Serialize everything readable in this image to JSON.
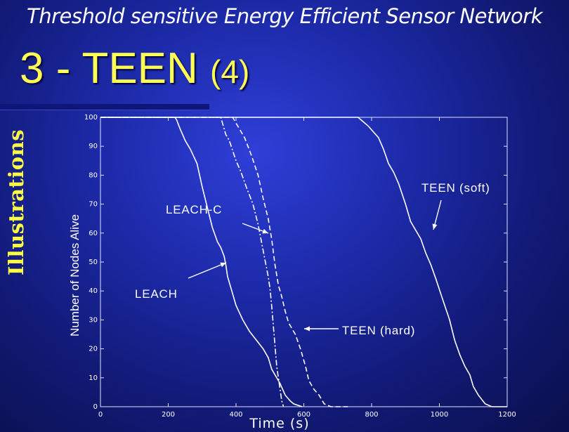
{
  "slide": {
    "top_title": "Threshold sensitive Energy Efficient Sensor Network",
    "heading_main": "3 - TEEN",
    "heading_sub": "(4)",
    "side_label": "Illustrations"
  },
  "colors": {
    "heading": "#ffff55",
    "side_label": "#ffff44",
    "lines": "#ffffff"
  },
  "chart_data": {
    "type": "line",
    "title": "",
    "xlabel": "Time (s)",
    "ylabel": "Number of Nodes Alive",
    "xlim": [
      0,
      1200
    ],
    "ylim": [
      0,
      100
    ],
    "xticks": [
      0,
      200,
      400,
      600,
      800,
      1000,
      1200
    ],
    "yticks": [
      0,
      10,
      20,
      30,
      40,
      50,
      60,
      70,
      80,
      90,
      100
    ],
    "grid": false,
    "series": [
      {
        "name": "LEACH",
        "style": "solid",
        "points": [
          [
            0,
            100
          ],
          [
            220,
            100
          ],
          [
            225,
            99
          ],
          [
            235,
            96
          ],
          [
            250,
            92
          ],
          [
            265,
            89
          ],
          [
            285,
            84
          ],
          [
            300,
            76
          ],
          [
            315,
            69
          ],
          [
            330,
            62
          ],
          [
            345,
            57
          ],
          [
            355,
            55
          ],
          [
            365,
            52
          ],
          [
            370,
            49
          ],
          [
            375,
            45
          ],
          [
            385,
            41
          ],
          [
            400,
            35
          ],
          [
            420,
            30
          ],
          [
            440,
            26
          ],
          [
            460,
            23
          ],
          [
            480,
            20
          ],
          [
            495,
            17
          ],
          [
            500,
            15
          ],
          [
            505,
            13
          ],
          [
            515,
            11
          ],
          [
            530,
            8
          ],
          [
            545,
            4
          ],
          [
            560,
            2
          ],
          [
            570,
            1
          ],
          [
            595,
            0
          ]
        ]
      },
      {
        "name": "LEACH-C",
        "style": "dashdot",
        "points": [
          [
            0,
            100
          ],
          [
            355,
            100
          ],
          [
            360,
            98
          ],
          [
            370,
            94
          ],
          [
            380,
            92
          ],
          [
            400,
            85
          ],
          [
            415,
            81
          ],
          [
            430,
            76
          ],
          [
            450,
            70
          ],
          [
            465,
            63
          ],
          [
            475,
            57
          ],
          [
            485,
            51
          ],
          [
            495,
            45
          ],
          [
            500,
            41
          ],
          [
            505,
            35
          ],
          [
            510,
            28
          ],
          [
            515,
            21
          ],
          [
            520,
            14
          ],
          [
            525,
            10
          ],
          [
            530,
            6
          ],
          [
            535,
            2
          ],
          [
            540,
            0
          ]
        ]
      },
      {
        "name": "TEEN (hard)",
        "style": "dashed",
        "points": [
          [
            0,
            100
          ],
          [
            390,
            100
          ],
          [
            395,
            99
          ],
          [
            410,
            96
          ],
          [
            425,
            93
          ],
          [
            445,
            87
          ],
          [
            465,
            80
          ],
          [
            480,
            72
          ],
          [
            495,
            65
          ],
          [
            505,
            58
          ],
          [
            515,
            49
          ],
          [
            525,
            42
          ],
          [
            535,
            38
          ],
          [
            545,
            33
          ],
          [
            555,
            29
          ],
          [
            565,
            27
          ],
          [
            575,
            25
          ],
          [
            590,
            20
          ],
          [
            605,
            14
          ],
          [
            615,
            9
          ],
          [
            630,
            6
          ],
          [
            645,
            4
          ],
          [
            660,
            1
          ],
          [
            680,
            0
          ],
          [
            730,
            0
          ]
        ]
      },
      {
        "name": "TEEN (soft)",
        "style": "solid",
        "points": [
          [
            0,
            100
          ],
          [
            760,
            100
          ],
          [
            770,
            99
          ],
          [
            790,
            97
          ],
          [
            805,
            95
          ],
          [
            820,
            93
          ],
          [
            835,
            89
          ],
          [
            850,
            84
          ],
          [
            865,
            81
          ],
          [
            880,
            77
          ],
          [
            900,
            70
          ],
          [
            915,
            64
          ],
          [
            930,
            61
          ],
          [
            945,
            58
          ],
          [
            960,
            53
          ],
          [
            975,
            49
          ],
          [
            990,
            44
          ],
          [
            1010,
            37
          ],
          [
            1030,
            30
          ],
          [
            1045,
            23
          ],
          [
            1060,
            18
          ],
          [
            1075,
            14
          ],
          [
            1090,
            11
          ],
          [
            1100,
            7
          ],
          [
            1115,
            4
          ],
          [
            1135,
            1
          ],
          [
            1155,
            0
          ],
          [
            1200,
            0
          ]
        ]
      }
    ],
    "annotations": [
      {
        "text": "TEEN (soft)",
        "series": "TEEN (soft)"
      },
      {
        "text": "LEACH-C",
        "series": "LEACH-C"
      },
      {
        "text": "LEACH",
        "series": "LEACH"
      },
      {
        "text": "TEEN (hard)",
        "series": "TEEN (hard)"
      }
    ]
  }
}
